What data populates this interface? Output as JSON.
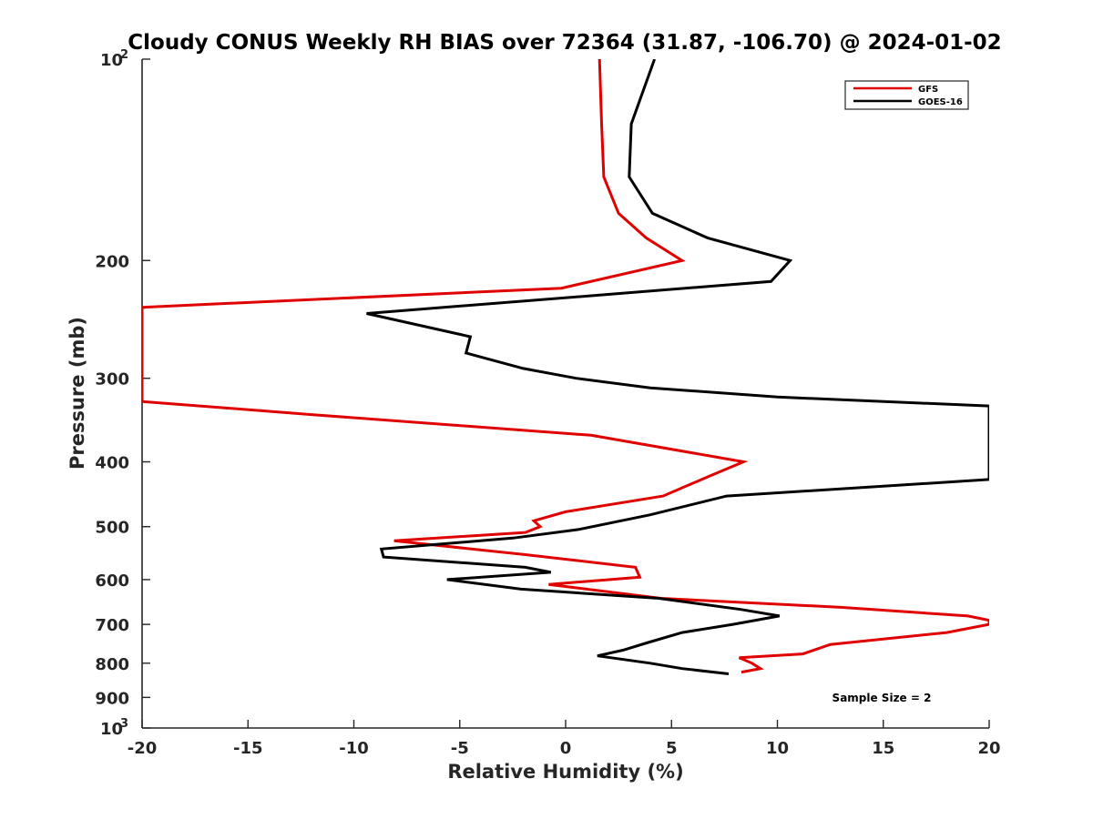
{
  "chart_data": {
    "type": "line",
    "title": "Cloudy CONUS Weekly RH BIAS over 72364 (31.87, -106.70) @ 2024-01-02",
    "xlabel": "Relative Humidity (%)",
    "ylabel": "Pressure (mb)",
    "xlim": [
      -20,
      20
    ],
    "ylim": [
      100,
      1000
    ],
    "y_scale": "log",
    "y_reversed": true,
    "grid": false,
    "legend_position": "top-right",
    "annotation": "Sample Size = 2",
    "x_ticks": [
      -20,
      -15,
      -10,
      -5,
      0,
      5,
      10,
      15,
      20
    ],
    "x_tick_labels": [
      "-20",
      "-15",
      "-10",
      "-5",
      "0",
      "5",
      "10",
      "15",
      "20"
    ],
    "y_ticks": [
      100,
      200,
      300,
      400,
      500,
      600,
      700,
      800,
      900,
      1000
    ],
    "y_tick_labels": [
      "",
      "200",
      "300",
      "400",
      "500",
      "600",
      "700",
      "800",
      "900",
      ""
    ],
    "y_end_labels": {
      "top_base": "10",
      "top_exp": "2",
      "bottom_base": "10",
      "bottom_exp": "3"
    },
    "series": [
      {
        "name": "GFS",
        "color": "#e00000",
        "points": [
          [
            1.6,
            100
          ],
          [
            1.7,
            125
          ],
          [
            1.8,
            150
          ],
          [
            2.5,
            170
          ],
          [
            3.8,
            185
          ],
          [
            5.5,
            200
          ],
          [
            -0.2,
            220
          ],
          [
            -20,
            235
          ],
          [
            -20,
            250
          ],
          [
            -20,
            300
          ],
          [
            -20,
            325
          ],
          [
            -12,
            340
          ],
          [
            1.2,
            365
          ],
          [
            8.4,
            400
          ],
          [
            6.8,
            420
          ],
          [
            4.6,
            450
          ],
          [
            0,
            475
          ],
          [
            -1.5,
            490
          ],
          [
            -1.2,
            500
          ],
          [
            -1.9,
            510
          ],
          [
            -8.1,
            525
          ],
          [
            -2,
            550
          ],
          [
            3.3,
            575
          ],
          [
            3.5,
            595
          ],
          [
            -0.8,
            610
          ],
          [
            4.5,
            640
          ],
          [
            13,
            660
          ],
          [
            19,
            680
          ],
          [
            20,
            690
          ],
          [
            20,
            700
          ],
          [
            18,
            720
          ],
          [
            12.5,
            750
          ],
          [
            11.2,
            775
          ],
          [
            8.2,
            785
          ],
          [
            8.8,
            800
          ],
          [
            9.2,
            815
          ],
          [
            8.3,
            825
          ]
        ]
      },
      {
        "name": "GOES-16",
        "color": "#000000",
        "points": [
          [
            4.2,
            100
          ],
          [
            3.1,
            125
          ],
          [
            3,
            150
          ],
          [
            4.1,
            170
          ],
          [
            6.7,
            185
          ],
          [
            10.6,
            200
          ],
          [
            9.7,
            215
          ],
          [
            -9.4,
            240
          ],
          [
            -4.5,
            260
          ],
          [
            -4.7,
            275
          ],
          [
            -2,
            290
          ],
          [
            0.5,
            300
          ],
          [
            4,
            310
          ],
          [
            10,
            320
          ],
          [
            20,
            330
          ],
          [
            20,
            350
          ],
          [
            20,
            400
          ],
          [
            20,
            425
          ],
          [
            7.6,
            450
          ],
          [
            4,
            480
          ],
          [
            0.6,
            505
          ],
          [
            -2.5,
            520
          ],
          [
            -8.7,
            540
          ],
          [
            -8.6,
            555
          ],
          [
            -1.9,
            575
          ],
          [
            -0.7,
            585
          ],
          [
            -5.6,
            600
          ],
          [
            -2.1,
            620
          ],
          [
            4.4,
            640
          ],
          [
            8.3,
            665
          ],
          [
            10.1,
            680
          ],
          [
            7.9,
            700
          ],
          [
            5.5,
            720
          ],
          [
            3.9,
            745
          ],
          [
            2.7,
            765
          ],
          [
            1.5,
            780
          ],
          [
            4,
            800
          ],
          [
            5.5,
            815
          ],
          [
            7.7,
            830
          ]
        ]
      }
    ]
  }
}
